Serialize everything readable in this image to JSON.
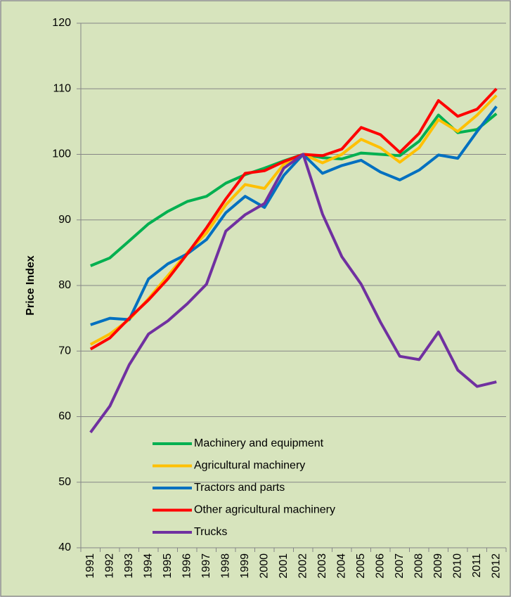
{
  "chart_data": {
    "type": "line",
    "ylabel": "Price Index",
    "categories": [
      "1991",
      "1992",
      "1993",
      "1994",
      "1995",
      "1996",
      "1997",
      "1998",
      "1999",
      "2000",
      "2001",
      "2002",
      "2003",
      "2004",
      "2005",
      "2006",
      "2007",
      "2008",
      "2009",
      "2010",
      "2011",
      "2012"
    ],
    "series": [
      {
        "name": "Machinery and equipment",
        "color": "#00b050",
        "values": [
          83.0,
          84.2,
          86.8,
          89.4,
          91.3,
          92.8,
          93.6,
          95.6,
          96.9,
          97.9,
          99.0,
          100,
          99.5,
          99.3,
          100.2,
          100.0,
          99.8,
          102.0,
          106.0,
          103.3,
          103.8,
          106.2
        ]
      },
      {
        "name": "Agricultural machinery",
        "color": "#ffc000",
        "values": [
          71.0,
          72.6,
          74.8,
          78.0,
          81.5,
          85.0,
          88.0,
          92.3,
          95.4,
          94.8,
          98.5,
          100,
          98.7,
          100.0,
          102.3,
          101.0,
          98.8,
          101.0,
          105.3,
          103.5,
          106.0,
          109.0
        ]
      },
      {
        "name": "Tractors and parts",
        "color": "#0070c0",
        "values": [
          74.0,
          75.0,
          74.8,
          81.0,
          83.3,
          84.8,
          87.0,
          91.1,
          93.6,
          91.9,
          96.8,
          100,
          97.1,
          98.3,
          99.1,
          97.3,
          96.1,
          97.6,
          99.9,
          99.4,
          103.5,
          107.3
        ]
      },
      {
        "name": "Other agricultural machinery",
        "color": "#ff0000",
        "values": [
          70.3,
          72.0,
          75.0,
          77.8,
          81.0,
          84.8,
          88.8,
          93.2,
          97.1,
          97.5,
          98.9,
          100,
          99.8,
          100.8,
          104.1,
          103.0,
          100.3,
          103.2,
          108.2,
          105.8,
          106.9,
          110.0
        ]
      },
      {
        "name": "Trucks",
        "color": "#7030a0",
        "values": [
          57.6,
          61.6,
          67.9,
          72.6,
          74.6,
          77.2,
          80.2,
          88.3,
          90.8,
          92.5,
          97.9,
          100,
          90.9,
          84.4,
          80.2,
          74.4,
          69.2,
          68.7,
          72.9,
          67.1,
          64.6,
          65.3
        ]
      }
    ],
    "ylim": [
      40,
      120
    ],
    "yticks": [
      40,
      50,
      60,
      70,
      80,
      90,
      100,
      110,
      120
    ],
    "grid": true,
    "legend": "lower left"
  }
}
